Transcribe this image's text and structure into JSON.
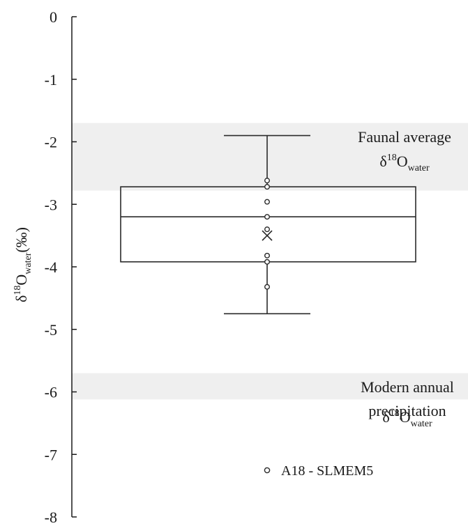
{
  "chart_data": {
    "type": "box",
    "ylabel": {
      "prefix": "δ",
      "sup": "18",
      "base": "O",
      "sub": "water",
      "suffix": "(‰)"
    },
    "ylim": [
      -8,
      0
    ],
    "yticks": [
      0,
      -1,
      -2,
      -3,
      -4,
      -5,
      -6,
      -7,
      -8
    ],
    "ytick_labels": [
      "0",
      "-1",
      "-2",
      "-3",
      "-4",
      "-5",
      "-6",
      "-7",
      "-8"
    ],
    "grid": false,
    "bands": [
      {
        "from": -1.7,
        "to": -2.78,
        "color": "#efefef",
        "label_lines": [
          "Faunal average"
        ],
        "label_iso": {
          "prefix": "δ",
          "sup": "18",
          "base": "O",
          "sub": "water"
        }
      },
      {
        "from": -5.7,
        "to": -6.12,
        "color": "#efefef",
        "label_lines": [
          "Modern annual",
          "precipitation"
        ],
        "label_iso": {
          "prefix": "δ",
          "sup": "18",
          "base": "O",
          "sub": "water"
        }
      }
    ],
    "box": {
      "whisker_high": -1.9,
      "q3": -2.72,
      "median": -3.2,
      "q1": -3.92,
      "whisker_low": -4.75,
      "mean": -3.5
    },
    "points": [
      -2.62,
      -2.72,
      -2.96,
      -3.2,
      -3.4,
      -3.82,
      -3.92,
      -4.32
    ],
    "series": [
      {
        "name": "A18 - SLMEM5",
        "marker": "open-circle"
      }
    ],
    "legend_position": "bottom-center"
  }
}
